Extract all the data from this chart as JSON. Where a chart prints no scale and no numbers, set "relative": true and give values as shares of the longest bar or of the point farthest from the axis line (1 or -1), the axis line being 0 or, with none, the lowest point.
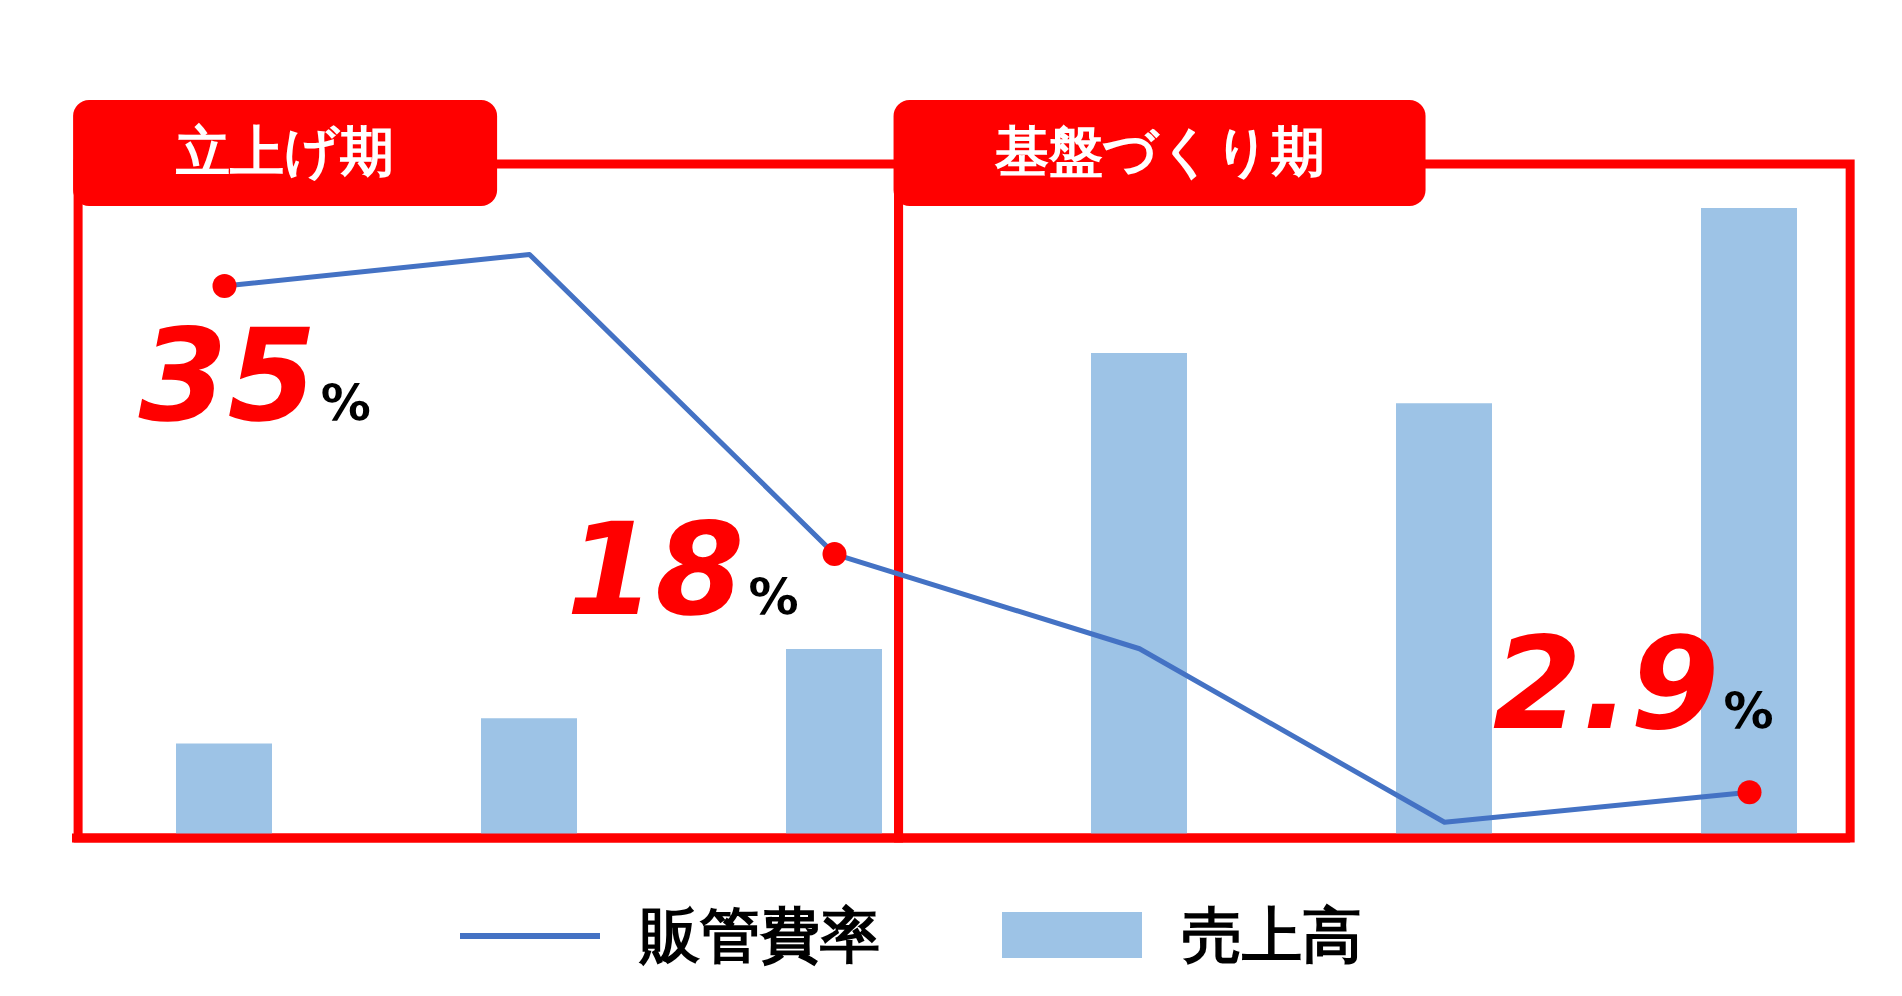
{
  "chart_data": [
    {
      "type": "line",
      "categories": [
        null,
        null,
        null,
        null,
        null,
        null
      ],
      "series": [
        {
          "name": "販管費率",
          "color": "#4472c4",
          "values": [
            35,
            37,
            18,
            12,
            1,
            2.9
          ],
          "value_labels": [
            "35%",
            null,
            "18%",
            null,
            null,
            "2.9%"
          ],
          "colors": [
            "#ff0000",
            null,
            "#ff0000",
            null,
            null,
            "#ff0000"
          ]
        }
      ],
      "marker": "circle",
      "line_style": "solid",
      "legend": "bottom"
    },
    {
      "type": "bar",
      "relative": true,
      "categories": [
        null,
        null,
        null,
        null,
        null,
        null
      ],
      "series": [
        {
          "name": "売上高",
          "color": "#9dc3e6",
          "values": [
            0.15,
            0.19,
            0.3,
            0.77,
            0.69,
            1
          ]
        }
      ],
      "annotations": [
        "立上げ期",
        "基盤づくり期"
      ],
      "legend": "bottom"
    }
  ]
}
